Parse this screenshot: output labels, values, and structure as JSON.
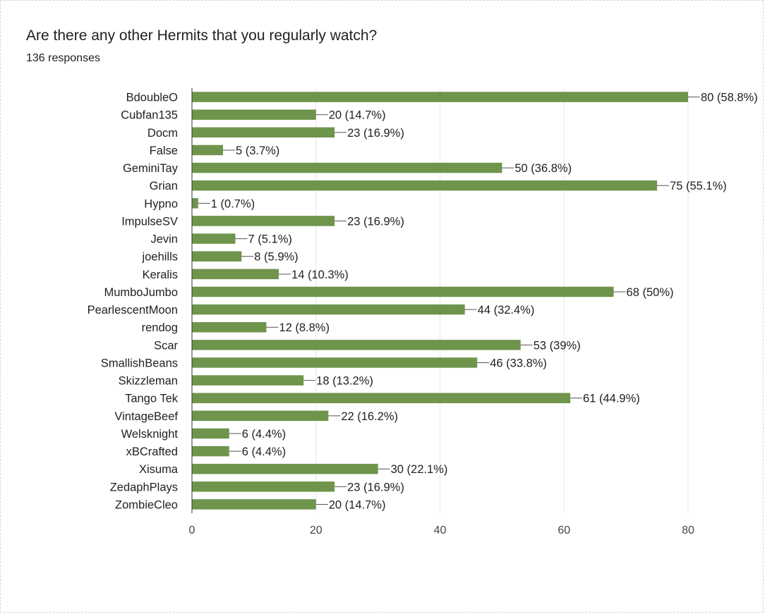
{
  "header": {
    "title": "Are there any other Hermits that you regularly watch?",
    "responses": "136 responses"
  },
  "colors": {
    "bar": "#6f944c",
    "grid": "#e6e6e6",
    "axis": "#333333"
  },
  "chart_data": {
    "type": "bar",
    "orientation": "horizontal",
    "title": "Are there any other Hermits that you regularly watch?",
    "xlim": [
      0,
      80
    ],
    "xticks": [
      0,
      20,
      40,
      60,
      80
    ],
    "grid": true,
    "categories": [
      "BdoubleO",
      "Cubfan135",
      "Docm",
      "False",
      "GeminiTay",
      "Grian",
      "Hypno",
      "ImpulseSV",
      "Jevin",
      "joehills",
      "Keralis",
      "MumboJumbo",
      "PearlescentMoon",
      "rendog",
      "Scar",
      "SmallishBeans",
      "Skizzleman",
      "Tango Tek",
      "VintageBeef",
      "Welsknight",
      "xBCrafted",
      "Xisuma",
      "ZedaphPlays",
      "ZombieCleo"
    ],
    "values": [
      80,
      20,
      23,
      5,
      50,
      75,
      1,
      23,
      7,
      8,
      14,
      68,
      44,
      12,
      53,
      46,
      18,
      61,
      22,
      6,
      6,
      30,
      23,
      20
    ],
    "labels": [
      "80 (58.8%)",
      "20 (14.7%)",
      "23 (16.9%)",
      "5 (3.7%)",
      "50 (36.8%)",
      "75 (55.1%)",
      "1 (0.7%)",
      "23 (16.9%)",
      "7 (5.1%)",
      "8 (5.9%)",
      "14 (10.3%)",
      "68 (50%)",
      "44 (32.4%)",
      "12 (8.8%)",
      "53 (39%)",
      "46 (33.8%)",
      "18 (13.2%)",
      "61 (44.9%)",
      "22 (16.2%)",
      "6 (4.4%)",
      "6 (4.4%)",
      "30 (22.1%)",
      "23 (16.9%)",
      "20 (14.7%)"
    ]
  }
}
